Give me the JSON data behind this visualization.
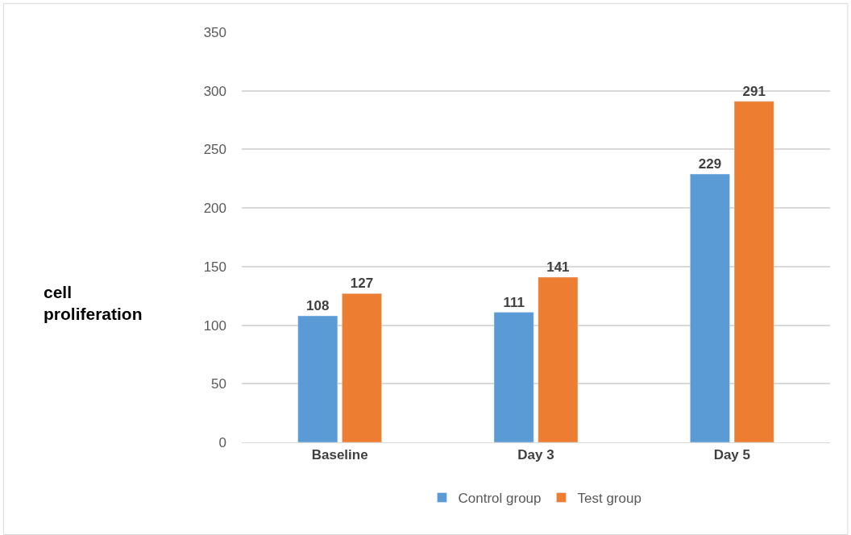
{
  "chart_data": {
    "type": "bar",
    "ylabel": "cell\nproliferation",
    "categories": [
      "Baseline",
      "Day 3",
      "Day 5"
    ],
    "series": [
      {
        "name": "Control group",
        "color": "#5b9bd5",
        "values": [
          108,
          111,
          229
        ]
      },
      {
        "name": "Test group",
        "color": "#ed7d31",
        "values": [
          127,
          141,
          291
        ]
      }
    ],
    "ylim": [
      0,
      350
    ],
    "yticks": [
      0,
      50,
      100,
      150,
      200,
      250,
      300,
      350
    ],
    "grid": "y",
    "legend": "bottom",
    "data_labels": true
  }
}
